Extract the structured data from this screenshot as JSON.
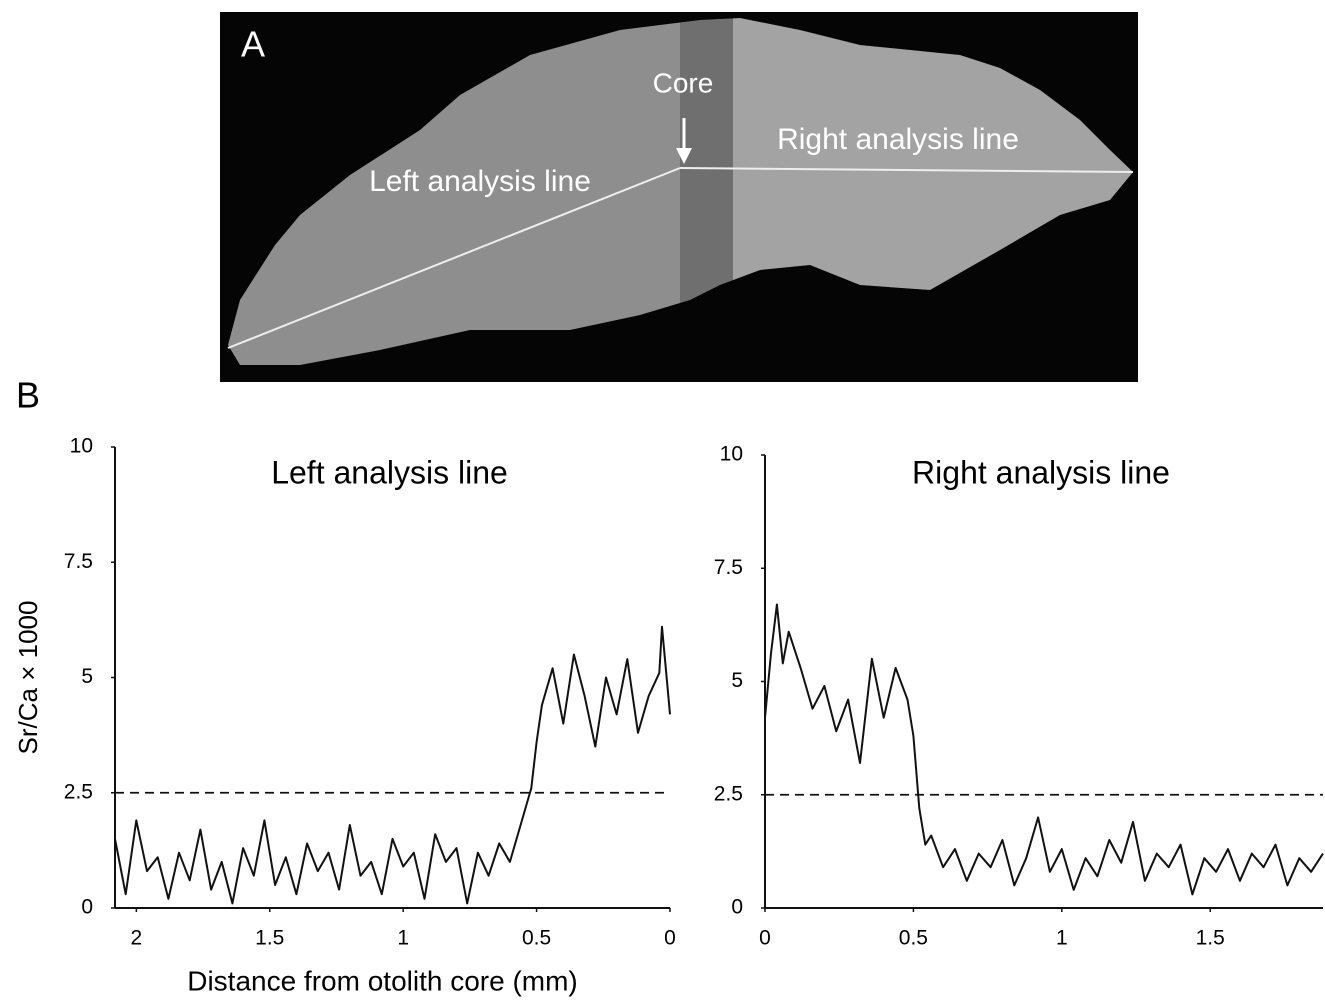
{
  "panel_a": {
    "label": "A",
    "core": "Core",
    "right_line": "Right analysis line",
    "left_line": "Left analysis line"
  },
  "panel_b": {
    "label": "B"
  },
  "chart_data": [
    {
      "type": "line",
      "title": "Left analysis line",
      "y_label": "Sr/Ca × 1000",
      "x_label": "Distance from otolith core (mm)",
      "color": "#111111",
      "threshold": 2.5,
      "x": [
        2.08,
        2.04,
        2.0,
        1.96,
        1.92,
        1.88,
        1.84,
        1.8,
        1.76,
        1.72,
        1.68,
        1.64,
        1.6,
        1.56,
        1.52,
        1.48,
        1.44,
        1.4,
        1.36,
        1.32,
        1.28,
        1.24,
        1.2,
        1.16,
        1.12,
        1.08,
        1.04,
        1.0,
        0.96,
        0.92,
        0.88,
        0.84,
        0.8,
        0.76,
        0.72,
        0.68,
        0.64,
        0.6,
        0.56,
        0.52,
        0.5,
        0.48,
        0.44,
        0.4,
        0.36,
        0.32,
        0.28,
        0.24,
        0.2,
        0.16,
        0.12,
        0.08,
        0.04,
        0.03,
        0.0
      ],
      "values": [
        1.5,
        0.3,
        1.9,
        0.8,
        1.1,
        0.2,
        1.2,
        0.6,
        1.7,
        0.4,
        1.0,
        0.1,
        1.3,
        0.7,
        1.9,
        0.5,
        1.1,
        0.3,
        1.4,
        0.8,
        1.2,
        0.4,
        1.8,
        0.7,
        1.0,
        0.3,
        1.5,
        0.9,
        1.2,
        0.2,
        1.6,
        1.0,
        1.3,
        0.1,
        1.2,
        0.7,
        1.4,
        1.0,
        1.8,
        2.6,
        3.6,
        4.4,
        5.2,
        4.0,
        5.5,
        4.6,
        3.5,
        5.0,
        4.2,
        5.4,
        3.8,
        4.6,
        5.1,
        6.1,
        4.2
      ],
      "xlim": [
        2.08,
        0
      ],
      "xticks": [
        2,
        1.5,
        1,
        0.5,
        0
      ],
      "ylim": [
        0,
        10
      ],
      "yticks": [
        0,
        2.5,
        5,
        7.5,
        10
      ]
    },
    {
      "type": "line",
      "title": "Right analysis line",
      "color": "#111111",
      "threshold": 2.5,
      "x": [
        0,
        0.02,
        0.04,
        0.06,
        0.08,
        0.12,
        0.16,
        0.2,
        0.24,
        0.28,
        0.32,
        0.36,
        0.4,
        0.44,
        0.48,
        0.5,
        0.52,
        0.54,
        0.56,
        0.6,
        0.64,
        0.68,
        0.72,
        0.76,
        0.8,
        0.84,
        0.88,
        0.92,
        0.96,
        1.0,
        1.04,
        1.08,
        1.12,
        1.16,
        1.2,
        1.24,
        1.28,
        1.32,
        1.36,
        1.4,
        1.44,
        1.48,
        1.52,
        1.56,
        1.6,
        1.64,
        1.68,
        1.72,
        1.76,
        1.8,
        1.84,
        1.88
      ],
      "values": [
        4.2,
        5.6,
        6.7,
        5.4,
        6.1,
        5.3,
        4.4,
        4.9,
        3.9,
        4.6,
        3.2,
        5.5,
        4.2,
        5.3,
        4.6,
        3.8,
        2.2,
        1.4,
        1.6,
        0.9,
        1.3,
        0.6,
        1.2,
        0.9,
        1.5,
        0.5,
        1.1,
        2.0,
        0.8,
        1.3,
        0.4,
        1.1,
        0.7,
        1.5,
        1.0,
        1.9,
        0.6,
        1.2,
        0.9,
        1.4,
        0.3,
        1.1,
        0.8,
        1.3,
        0.6,
        1.2,
        0.9,
        1.4,
        0.5,
        1.1,
        0.8,
        1.2
      ],
      "xlim": [
        0,
        1.88
      ],
      "xticks": [
        0,
        0.5,
        1,
        1.5
      ],
      "ylim": [
        0,
        10
      ],
      "yticks": [
        0,
        2.5,
        5,
        7.5,
        10
      ]
    }
  ]
}
